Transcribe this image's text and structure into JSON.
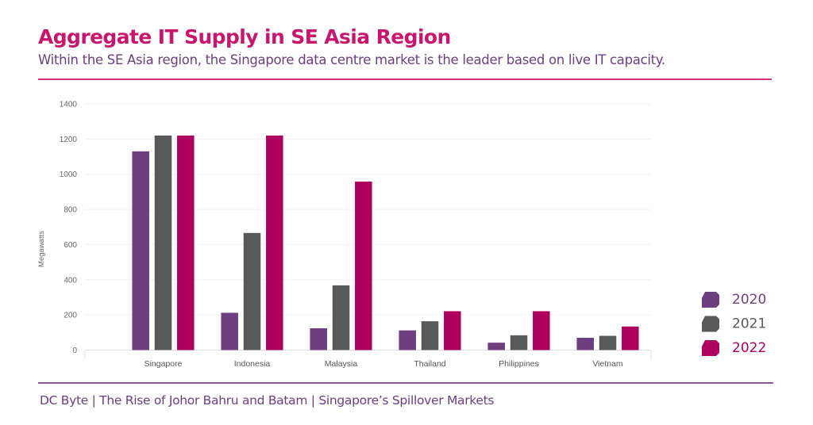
{
  "header": {
    "title": "Aggregate IT Supply in SE Asia Region",
    "subtitle": "Within the SE Asia region, the Singapore data centre market is the leader based on live IT capacity."
  },
  "footer": {
    "text": "DC Byte | The Rise of Johor Bahru and Batam | Singapore’s Spillover Markets"
  },
  "colors": {
    "title": "#C8166E",
    "subtitle": "#6C3E80"
  },
  "chart_data": {
    "type": "bar",
    "title": "",
    "xlabel": "",
    "ylabel": "Megawatts",
    "ylim": [
      0,
      1400
    ],
    "yticks": [
      0,
      200,
      400,
      600,
      800,
      1000,
      1200,
      1400
    ],
    "grid": true,
    "legend_position": "right",
    "categories": [
      "Singapore",
      "Indonesia",
      "Malaysia",
      "Thailand",
      "Philippines",
      "Vietnam"
    ],
    "series": [
      {
        "name": "2020",
        "color": "#6E3F7F",
        "values": [
          1130,
          212,
          124,
          112,
          42,
          70
        ]
      },
      {
        "name": "2021",
        "color": "#58595B",
        "values": [
          1220,
          666,
          368,
          164,
          84,
          81
        ]
      },
      {
        "name": "2022",
        "color": "#AE005E",
        "values": [
          1220,
          1220,
          958,
          221,
          221,
          134
        ]
      }
    ]
  }
}
